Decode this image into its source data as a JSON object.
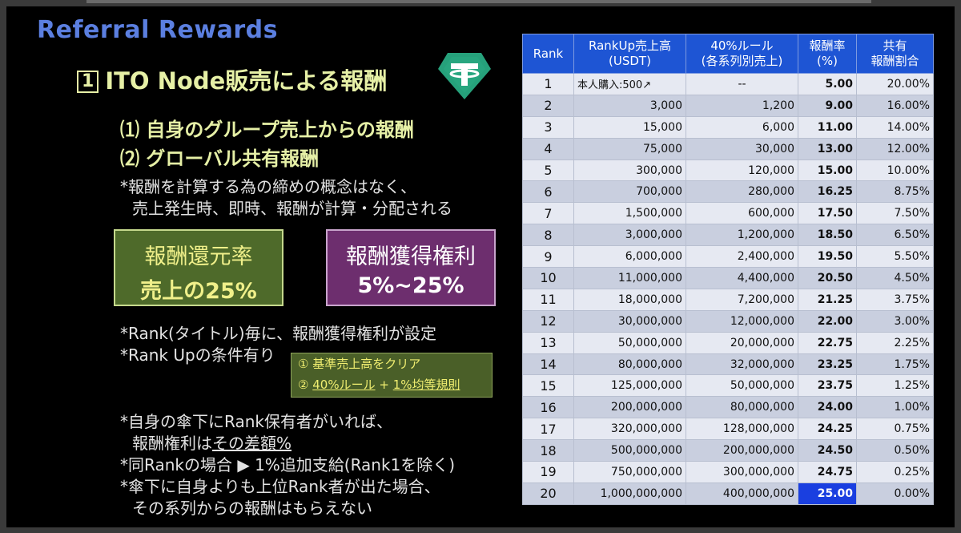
{
  "title": "Referral Rewards",
  "section": {
    "number": "1",
    "text": "ITO Node販売による報酬"
  },
  "subs": [
    "⑴ 自身のグループ売上からの報酬",
    "⑵ グローバル共有報酬"
  ],
  "note1": [
    "*報酬を計算する為の締めの概念はなく、",
    "売上発生時、即時、報酬が計算・分配される"
  ],
  "box_green": {
    "line1": "報酬還元率",
    "line2": "売上の25%"
  },
  "box_purple": {
    "line1": "報酬獲得権利",
    "line2": "5%~25%"
  },
  "note2": [
    "*Rank(タイトル)毎に、報酬獲得権利が設定",
    "*Rank Upの条件有り"
  ],
  "conditions": [
    {
      "num": "①",
      "text": "基準売上高をクリア"
    },
    {
      "num": "②",
      "a": "40%ルール",
      "plus": "+",
      "b": "1%均等規則"
    }
  ],
  "note3": {
    "l1": "*自身の傘下にRank保有者がいれば、",
    "l2a": "報酬権利は",
    "l2b": "その差額%",
    "l3": "*同Rankの場合 ▶ 1%追加支給(Rank1を除く)",
    "l4": "*傘下に自身よりも上位Rank者が出た場合、",
    "l5": "その系列からの報酬はもらえない"
  },
  "table": {
    "headers": [
      "Rank",
      "RankUp売上高\n(USDT)",
      "40%ルール\n(各系列別売上)",
      "報酬率\n(%)",
      "共有\n報酬割合"
    ],
    "rows": [
      [
        "1",
        "本人購入:500↗",
        "--",
        "5.00",
        "20.00%"
      ],
      [
        "2",
        "3,000",
        "1,200",
        "9.00",
        "16.00%"
      ],
      [
        "3",
        "15,000",
        "6,000",
        "11.00",
        "14.00%"
      ],
      [
        "4",
        "75,000",
        "30,000",
        "13.00",
        "12.00%"
      ],
      [
        "5",
        "300,000",
        "120,000",
        "15.00",
        "10.00%"
      ],
      [
        "6",
        "700,000",
        "280,000",
        "16.25",
        "8.75%"
      ],
      [
        "7",
        "1,500,000",
        "600,000",
        "17.50",
        "7.50%"
      ],
      [
        "8",
        "3,000,000",
        "1,200,000",
        "18.50",
        "6.50%"
      ],
      [
        "9",
        "6,000,000",
        "2,400,000",
        "19.50",
        "5.50%"
      ],
      [
        "10",
        "11,000,000",
        "4,400,000",
        "20.50",
        "4.50%"
      ],
      [
        "11",
        "18,000,000",
        "7,200,000",
        "21.25",
        "3.75%"
      ],
      [
        "12",
        "30,000,000",
        "12,000,000",
        "22.00",
        "3.00%"
      ],
      [
        "13",
        "50,000,000",
        "20,000,000",
        "22.75",
        "2.25%"
      ],
      [
        "14",
        "80,000,000",
        "32,000,000",
        "23.25",
        "1.75%"
      ],
      [
        "15",
        "125,000,000",
        "50,000,000",
        "23.75",
        "1.25%"
      ],
      [
        "16",
        "200,000,000",
        "80,000,000",
        "24.00",
        "1.00%"
      ],
      [
        "17",
        "320,000,000",
        "128,000,000",
        "24.25",
        "0.75%"
      ],
      [
        "18",
        "500,000,000",
        "200,000,000",
        "24.50",
        "0.50%"
      ],
      [
        "19",
        "750,000,000",
        "300,000,000",
        "24.75",
        "0.25%"
      ],
      [
        "20",
        "1,000,000,000",
        "400,000,000",
        "25.00",
        "0.00%"
      ]
    ]
  },
  "colors": {
    "title": "#5b7fe0",
    "accent_text": "#e6f0a6",
    "header_bg": "#1e55d4",
    "green_box": "#4e6a2a",
    "purple_box": "#6d2e6e",
    "tether": "#26a17b"
  },
  "icons": {
    "tether": "tether-usdt-icon"
  }
}
